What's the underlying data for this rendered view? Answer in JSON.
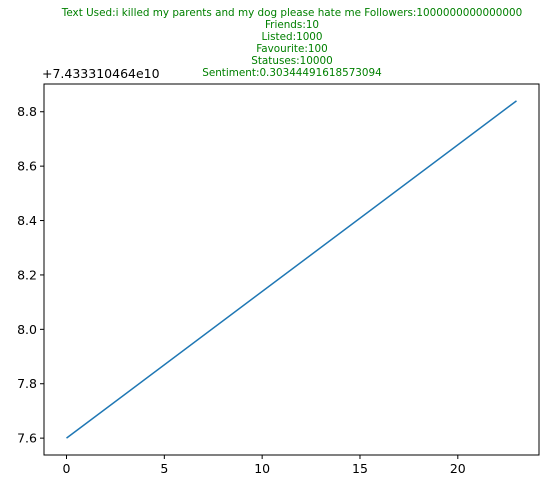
{
  "chart_data": {
    "type": "line",
    "title_lines": [
      "Text Used:i killed my parents and my dog please hate me Followers:1000000000000000",
      "Friends:10",
      "Listed:1000",
      "Favourite:100",
      "Statuses:10000",
      "Sentiment:0.30344491618573094"
    ],
    "title_color": "#008000",
    "y_offset_label": "+7.433310464e10",
    "x_ticks": [
      0,
      5,
      10,
      15,
      20
    ],
    "y_ticks": [
      7.6,
      7.8,
      8.0,
      8.2,
      8.4,
      8.6,
      8.8
    ],
    "y_tick_labels": [
      "7.6",
      "7.8",
      "8.0",
      "8.2",
      "8.4",
      "8.6",
      "8.8"
    ],
    "xlim": [
      -1.15,
      24.15
    ],
    "ylim": [
      7.538,
      8.902
    ],
    "grid": false,
    "series": [
      {
        "color": "#1f77b4",
        "x": [
          0,
          23
        ],
        "y": [
          7.6,
          8.84
        ]
      }
    ]
  }
}
